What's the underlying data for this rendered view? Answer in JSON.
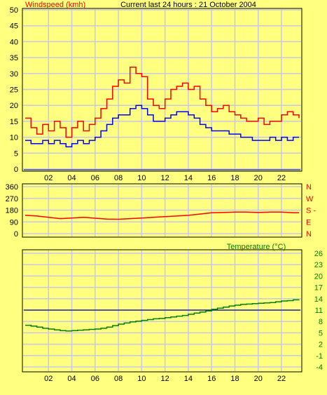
{
  "header": {
    "windspeed_label": "Windspeed (kmh)",
    "title": "Current last 24 hours : 21 October 2004"
  },
  "colors": {
    "background": "#ffff80",
    "grid": "#c8c8e6",
    "axis_text": "#000000",
    "windspeed": "#ff0000",
    "wind_direction": "#ff0000",
    "temperature": "#008000",
    "blue_series": "#0000ff",
    "reference_line": "#00008b"
  },
  "chart_data": [
    {
      "type": "line",
      "id": "windspeed",
      "title": "Current last 24 hours : 21 October 2004",
      "ylabel": "Windspeed (kmh)",
      "ylim": [
        0,
        50
      ],
      "xlim": [
        0,
        23.5
      ],
      "x_ticks": [
        "02",
        "04",
        "06",
        "08",
        "10",
        "12",
        "14",
        "16",
        "18",
        "20",
        "22"
      ],
      "y_ticks": [
        0,
        5,
        10,
        15,
        20,
        25,
        30,
        35,
        40,
        45,
        50
      ],
      "grid": true,
      "series": [
        {
          "color": "#ff0000",
          "style": "step",
          "x": [
            0,
            0.5,
            1,
            1.5,
            2,
            2.5,
            3,
            3.5,
            4,
            4.5,
            5,
            5.5,
            6,
            6.5,
            7,
            7.5,
            8,
            8.5,
            9,
            9.5,
            10,
            10.5,
            11,
            11.5,
            12,
            12.5,
            13,
            13.5,
            14,
            14.5,
            15,
            15.5,
            16,
            16.5,
            17,
            17.5,
            18,
            18.5,
            19,
            19.5,
            20,
            20.5,
            21,
            21.5,
            22,
            22.5,
            23,
            23.5
          ],
          "values": [
            16,
            13,
            11,
            14,
            12,
            15,
            13,
            10,
            13,
            15,
            12,
            14,
            16,
            19,
            22,
            26,
            28,
            27,
            32,
            30,
            29,
            22,
            20,
            19,
            22,
            25,
            26,
            27,
            25,
            26,
            22,
            20,
            18,
            19,
            20,
            18,
            17,
            16,
            15,
            15,
            16,
            14,
            15,
            15,
            17,
            18,
            17,
            16
          ]
        },
        {
          "color": "#0000ff",
          "style": "step",
          "x": [
            0,
            0.5,
            1,
            1.5,
            2,
            2.5,
            3,
            3.5,
            4,
            4.5,
            5,
            5.5,
            6,
            6.5,
            7,
            7.5,
            8,
            8.5,
            9,
            9.5,
            10,
            10.5,
            11,
            11.5,
            12,
            12.5,
            13,
            13.5,
            14,
            14.5,
            15,
            15.5,
            16,
            16.5,
            17,
            17.5,
            18,
            18.5,
            19,
            19.5,
            20,
            20.5,
            21,
            21.5,
            22,
            22.5,
            23,
            23.5
          ],
          "values": [
            9,
            8,
            8,
            9,
            8,
            9,
            8,
            7,
            8,
            9,
            8,
            9,
            10,
            12,
            14,
            16,
            17,
            17,
            19,
            20,
            19,
            17,
            15,
            15,
            16,
            17,
            18,
            18,
            17,
            16,
            14,
            13,
            12,
            12,
            12,
            11,
            11,
            10,
            10,
            9,
            9,
            9,
            10,
            9,
            10,
            9,
            10,
            10
          ]
        }
      ]
    },
    {
      "type": "line",
      "id": "wind-direction",
      "ylim": [
        0,
        360
      ],
      "y_ticks": [
        0,
        90,
        180,
        270,
        360
      ],
      "y_ticks_right": [
        "N",
        "W",
        "S",
        "E",
        "N"
      ],
      "grid": true,
      "series": [
        {
          "color": "#ff0000",
          "x": [
            0,
            1,
            2,
            3,
            4,
            5,
            6,
            7,
            8,
            9,
            10,
            11,
            12,
            13,
            14,
            15,
            16,
            17,
            18,
            19,
            20,
            21,
            22,
            23,
            23.5
          ],
          "values": [
            140,
            135,
            125,
            115,
            120,
            125,
            118,
            112,
            110,
            115,
            120,
            125,
            130,
            135,
            140,
            150,
            160,
            162,
            165,
            165,
            162,
            165,
            165,
            160,
            160
          ]
        }
      ]
    },
    {
      "type": "line",
      "id": "temperature",
      "title": "Temperature (°C)",
      "ylim": [
        -4,
        26
      ],
      "y_ticks": [
        -4,
        -1,
        2,
        5,
        8,
        11,
        14,
        17,
        20,
        23,
        26
      ],
      "grid": true,
      "reference_line": 11,
      "series": [
        {
          "color": "#008000",
          "style": "step",
          "x": [
            0,
            0.5,
            1,
            1.5,
            2,
            2.5,
            3,
            3.5,
            4,
            4.5,
            5,
            5.5,
            6,
            6.5,
            7,
            7.5,
            8,
            8.5,
            9,
            9.5,
            10,
            10.5,
            11,
            11.5,
            12,
            12.5,
            13,
            13.5,
            14,
            14.5,
            15,
            15.5,
            16,
            16.5,
            17,
            17.5,
            18,
            18.5,
            19,
            19.5,
            20,
            20.5,
            21,
            21.5,
            22,
            22.5,
            23,
            23.5
          ],
          "values": [
            7,
            6.8,
            6.5,
            6.2,
            6,
            5.8,
            5.6,
            5.5,
            5.6,
            5.7,
            5.8,
            5.9,
            6,
            6.2,
            6.5,
            6.9,
            7.3,
            7.6,
            7.9,
            8.1,
            8.3,
            8.5,
            8.7,
            8.8,
            9,
            9.2,
            9.4,
            9.6,
            9.9,
            10.2,
            10.5,
            10.8,
            11.2,
            11.5,
            11.8,
            12.1,
            12.3,
            12.5,
            12.6,
            12.7,
            12.8,
            12.9,
            13,
            13.2,
            13.4,
            13.5,
            13.7,
            13.8
          ]
        }
      ]
    }
  ]
}
